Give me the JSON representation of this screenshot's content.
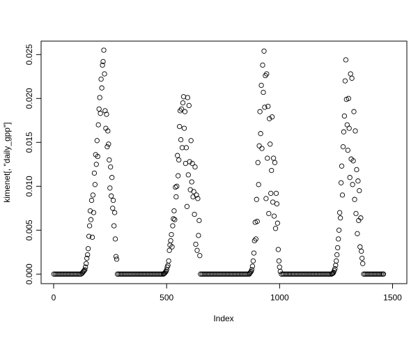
{
  "chart_data": {
    "type": "scatter",
    "title": "",
    "xlabel": "Index",
    "ylabel": "kimenet[, \"daily_gpp\"]",
    "xlim": [
      0,
      1500
    ],
    "ylim": [
      0,
      0.025
    ],
    "grid": false,
    "marker": "open-circle",
    "color": "#000000",
    "x_ticks": [
      {
        "value": 0,
        "label": "0"
      },
      {
        "value": 500,
        "label": "500"
      },
      {
        "value": 1000,
        "label": "1000"
      },
      {
        "value": 1500,
        "label": "1500"
      }
    ],
    "y_ticks": [
      {
        "value": 0,
        "label": "0.000"
      },
      {
        "value": 0.005,
        "label": "0.005"
      },
      {
        "value": 0.01,
        "label": "0.010"
      },
      {
        "value": 0.015,
        "label": "0.015"
      },
      {
        "value": 0.02,
        "label": "0.020"
      },
      {
        "value": 0.025,
        "label": "0.025"
      }
    ],
    "points": [
      [
        1,
        0
      ],
      [
        7,
        0
      ],
      [
        13,
        0
      ],
      [
        19,
        0
      ],
      [
        25,
        0
      ],
      [
        31,
        0
      ],
      [
        37,
        0
      ],
      [
        43,
        0
      ],
      [
        49,
        0
      ],
      [
        55,
        0
      ],
      [
        61,
        0
      ],
      [
        67,
        0
      ],
      [
        73,
        0
      ],
      [
        79,
        0
      ],
      [
        85,
        0
      ],
      [
        91,
        0
      ],
      [
        97,
        0
      ],
      [
        103,
        0
      ],
      [
        109,
        0
      ],
      [
        115,
        0
      ],
      [
        121,
        0
      ],
      [
        126,
        0.0001
      ],
      [
        129,
        0.0002
      ],
      [
        132,
        0.0003
      ],
      [
        135,
        0.0004
      ],
      [
        138,
        0.0005
      ],
      [
        141,
        0.0008
      ],
      [
        144,
        0.0012
      ],
      [
        147,
        0.0018
      ],
      [
        150,
        0.0022
      ],
      [
        153,
        0.0029
      ],
      [
        156,
        0.0043
      ],
      [
        159,
        0.0055
      ],
      [
        162,
        0.0072
      ],
      [
        165,
        0.0062
      ],
      [
        168,
        0.0084
      ],
      [
        171,
        0.0042
      ],
      [
        174,
        0.009
      ],
      [
        177,
        0.007
      ],
      [
        180,
        0.0115
      ],
      [
        183,
        0.0102
      ],
      [
        186,
        0.0136
      ],
      [
        189,
        0.0125
      ],
      [
        192,
        0.0152
      ],
      [
        195,
        0.0134
      ],
      [
        198,
        0.017
      ],
      [
        201,
        0.0188
      ],
      [
        204,
        0.0201
      ],
      [
        207,
        0.0183
      ],
      [
        210,
        0.0222
      ],
      [
        213,
        0.0212
      ],
      [
        216,
        0.0238
      ],
      [
        219,
        0.0242
      ],
      [
        222,
        0.0255
      ],
      [
        225,
        0.0228
      ],
      [
        228,
        0.0186
      ],
      [
        231,
        0.0166
      ],
      [
        234,
        0.0182
      ],
      [
        237,
        0.0145
      ],
      [
        240,
        0.0163
      ],
      [
        243,
        0.0148
      ],
      [
        246,
        0.013
      ],
      [
        249,
        0.0098
      ],
      [
        252,
        0.0122
      ],
      [
        255,
        0.0089
      ],
      [
        258,
        0.011
      ],
      [
        261,
        0.0075
      ],
      [
        264,
        0.0084
      ],
      [
        267,
        0.0055
      ],
      [
        270,
        0.007
      ],
      [
        273,
        0.004
      ],
      [
        276,
        0.002
      ],
      [
        279,
        0.0017
      ],
      [
        282,
        0
      ],
      [
        288,
        0
      ],
      [
        294,
        0
      ],
      [
        300,
        0
      ],
      [
        306,
        0
      ],
      [
        312,
        0
      ],
      [
        318,
        0
      ],
      [
        324,
        0
      ],
      [
        330,
        0
      ],
      [
        336,
        0
      ],
      [
        342,
        0
      ],
      [
        348,
        0
      ],
      [
        354,
        0
      ],
      [
        360,
        0
      ],
      [
        366,
        0
      ],
      [
        372,
        0
      ],
      [
        378,
        0
      ],
      [
        384,
        0
      ],
      [
        390,
        0
      ],
      [
        396,
        0
      ],
      [
        402,
        0
      ],
      [
        408,
        0
      ],
      [
        414,
        0
      ],
      [
        420,
        0
      ],
      [
        426,
        0
      ],
      [
        432,
        0
      ],
      [
        438,
        0
      ],
      [
        444,
        0
      ],
      [
        450,
        0
      ],
      [
        456,
        0
      ],
      [
        462,
        0
      ],
      [
        468,
        0
      ],
      [
        474,
        0
      ],
      [
        480,
        0
      ],
      [
        486,
        0
      ],
      [
        488,
        5e-05
      ],
      [
        491,
        0.0001
      ],
      [
        494,
        0.0002
      ],
      [
        497,
        0.0003
      ],
      [
        500,
        0.0005
      ],
      [
        503,
        0.0008
      ],
      [
        506,
        0.001
      ],
      [
        509,
        0.0015
      ],
      [
        512,
        0.0027
      ],
      [
        515,
        0.0033
      ],
      [
        518,
        0.0038
      ],
      [
        521,
        0.0045
      ],
      [
        524,
        0.0031
      ],
      [
        527,
        0.0055
      ],
      [
        530,
        0.0063
      ],
      [
        533,
        0.0072
      ],
      [
        536,
        0.0062
      ],
      [
        539,
        0.0099
      ],
      [
        542,
        0.0088
      ],
      [
        545,
        0.01
      ],
      [
        548,
        0.0135
      ],
      [
        551,
        0.0112
      ],
      [
        554,
        0.013
      ],
      [
        557,
        0.0168
      ],
      [
        560,
        0.0186
      ],
      [
        563,
        0.0153
      ],
      [
        566,
        0.0188
      ],
      [
        569,
        0.0144
      ],
      [
        572,
        0.0195
      ],
      [
        575,
        0.0202
      ],
      [
        578,
        0.0166
      ],
      [
        581,
        0.0185
      ],
      [
        584,
        0.0126
      ],
      [
        587,
        0.0144
      ],
      [
        590,
        0.0077
      ],
      [
        593,
        0.0201
      ],
      [
        596,
        0.0113
      ],
      [
        599,
        0.0192
      ],
      [
        602,
        0.0128
      ],
      [
        605,
        0.0096
      ],
      [
        608,
        0.0152
      ],
      [
        611,
        0.0105
      ],
      [
        614,
        0.0126
      ],
      [
        617,
        0.0088
      ],
      [
        620,
        0.0094
      ],
      [
        623,
        0.0068
      ],
      [
        626,
        0.0122
      ],
      [
        629,
        0.0034
      ],
      [
        632,
        0.009
      ],
      [
        635,
        0.0027
      ],
      [
        638,
        0.0086
      ],
      [
        641,
        0.0044
      ],
      [
        644,
        0.0061
      ],
      [
        647,
        0.0021
      ],
      [
        650,
        0
      ],
      [
        656,
        0
      ],
      [
        662,
        0
      ],
      [
        668,
        0
      ],
      [
        674,
        0
      ],
      [
        680,
        0
      ],
      [
        686,
        0
      ],
      [
        692,
        0
      ],
      [
        698,
        0
      ],
      [
        704,
        0
      ],
      [
        710,
        0
      ],
      [
        716,
        0
      ],
      [
        722,
        0
      ],
      [
        728,
        0
      ],
      [
        734,
        0
      ],
      [
        740,
        0
      ],
      [
        746,
        0
      ],
      [
        752,
        0
      ],
      [
        758,
        0
      ],
      [
        764,
        0
      ],
      [
        770,
        0
      ],
      [
        776,
        0
      ],
      [
        782,
        0
      ],
      [
        788,
        0
      ],
      [
        794,
        0
      ],
      [
        800,
        0
      ],
      [
        806,
        0
      ],
      [
        812,
        0
      ],
      [
        818,
        0
      ],
      [
        824,
        0
      ],
      [
        830,
        0
      ],
      [
        836,
        0
      ],
      [
        842,
        0
      ],
      [
        848,
        0
      ],
      [
        854,
        0
      ],
      [
        860,
        0
      ],
      [
        866,
        0
      ],
      [
        868,
        0.0001
      ],
      [
        871,
        0.0002
      ],
      [
        874,
        0.0003
      ],
      [
        877,
        0.0005
      ],
      [
        880,
        0.0009
      ],
      [
        883,
        0.0015
      ],
      [
        886,
        0.0024
      ],
      [
        889,
        0.0038
      ],
      [
        892,
        0.0059
      ],
      [
        895,
        0.004
      ],
      [
        898,
        0.0085
      ],
      [
        901,
        0.006
      ],
      [
        904,
        0.0127
      ],
      [
        907,
        0.0102
      ],
      [
        910,
        0.0146
      ],
      [
        913,
        0.0185
      ],
      [
        916,
        0.016
      ],
      [
        919,
        0.0215
      ],
      [
        922,
        0.0143
      ],
      [
        925,
        0.0238
      ],
      [
        928,
        0.0207
      ],
      [
        931,
        0.0254
      ],
      [
        934,
        0.019
      ],
      [
        937,
        0.0226
      ],
      [
        940,
        0.0086
      ],
      [
        943,
        0.0228
      ],
      [
        946,
        0.0132
      ],
      [
        949,
        0.0191
      ],
      [
        952,
        0.0069
      ],
      [
        955,
        0.0177
      ],
      [
        958,
        0.0148
      ],
      [
        961,
        0.0092
      ],
      [
        964,
        0.0118
      ],
      [
        967,
        0.0179
      ],
      [
        970,
        0.0082
      ],
      [
        973,
        0.0132
      ],
      [
        976,
        0.0066
      ],
      [
        979,
        0.0127
      ],
      [
        982,
        0.0052
      ],
      [
        985,
        0.0092
      ],
      [
        988,
        0.008
      ],
      [
        991,
        0.0058
      ],
      [
        994,
        0.0028
      ],
      [
        997,
        0.0015
      ],
      [
        1000,
        0.0008
      ],
      [
        1003,
        0.0003
      ],
      [
        1008,
        0
      ],
      [
        1014,
        0
      ],
      [
        1020,
        0
      ],
      [
        1026,
        0
      ],
      [
        1032,
        0
      ],
      [
        1038,
        0
      ],
      [
        1044,
        0
      ],
      [
        1050,
        0
      ],
      [
        1056,
        0
      ],
      [
        1062,
        0
      ],
      [
        1068,
        0
      ],
      [
        1074,
        0
      ],
      [
        1080,
        0
      ],
      [
        1086,
        0
      ],
      [
        1092,
        0
      ],
      [
        1098,
        0
      ],
      [
        1104,
        0
      ],
      [
        1110,
        0
      ],
      [
        1116,
        0
      ],
      [
        1122,
        0
      ],
      [
        1128,
        0
      ],
      [
        1134,
        0
      ],
      [
        1140,
        0
      ],
      [
        1146,
        0
      ],
      [
        1152,
        0
      ],
      [
        1158,
        0
      ],
      [
        1164,
        0
      ],
      [
        1170,
        0
      ],
      [
        1176,
        0
      ],
      [
        1182,
        0
      ],
      [
        1188,
        0
      ],
      [
        1194,
        0
      ],
      [
        1200,
        0
      ],
      [
        1206,
        0
      ],
      [
        1212,
        0
      ],
      [
        1218,
        0
      ],
      [
        1224,
        0
      ],
      [
        1230,
        0
      ],
      [
        1233,
        5e-05
      ],
      [
        1236,
        0.0001
      ],
      [
        1239,
        0.0002
      ],
      [
        1242,
        0.0004
      ],
      [
        1245,
        0.0006
      ],
      [
        1248,
        0.001
      ],
      [
        1251,
        0.0015
      ],
      [
        1254,
        0.0022
      ],
      [
        1257,
        0.003
      ],
      [
        1260,
        0.004
      ],
      [
        1263,
        0.005
      ],
      [
        1266,
        0.007
      ],
      [
        1269,
        0.0064
      ],
      [
        1272,
        0.0104
      ],
      [
        1275,
        0.0123
      ],
      [
        1278,
        0.009
      ],
      [
        1281,
        0.0145
      ],
      [
        1284,
        0.0162
      ],
      [
        1287,
        0.018
      ],
      [
        1290,
        0.022
      ],
      [
        1293,
        0.0244
      ],
      [
        1296,
        0.0199
      ],
      [
        1299,
        0.017
      ],
      [
        1302,
        0.0141
      ],
      [
        1305,
        0.02
      ],
      [
        1308,
        0.0166
      ],
      [
        1311,
        0.011
      ],
      [
        1314,
        0.0228
      ],
      [
        1317,
        0.0131
      ],
      [
        1320,
        0.0223
      ],
      [
        1323,
        0.0102
      ],
      [
        1326,
        0.0129
      ],
      [
        1329,
        0.0185
      ],
      [
        1332,
        0.0085
      ],
      [
        1335,
        0.0163
      ],
      [
        1338,
        0.0069
      ],
      [
        1341,
        0.0119
      ],
      [
        1344,
        0.0046
      ],
      [
        1347,
        0.0106
      ],
      [
        1350,
        0.0061
      ],
      [
        1353,
        0.0095
      ],
      [
        1356,
        0.0031
      ],
      [
        1359,
        0.0064
      ],
      [
        1362,
        0.0026
      ],
      [
        1365,
        0.0018
      ],
      [
        1368,
        0.0012
      ],
      [
        1372,
        0
      ],
      [
        1378,
        0
      ],
      [
        1384,
        0
      ],
      [
        1390,
        0
      ],
      [
        1396,
        0
      ],
      [
        1402,
        0
      ],
      [
        1408,
        0
      ],
      [
        1414,
        0
      ],
      [
        1420,
        0
      ],
      [
        1426,
        0
      ],
      [
        1432,
        0
      ],
      [
        1438,
        0
      ],
      [
        1444,
        0
      ],
      [
        1450,
        0
      ],
      [
        1456,
        0
      ],
      [
        1460,
        0
      ]
    ]
  }
}
